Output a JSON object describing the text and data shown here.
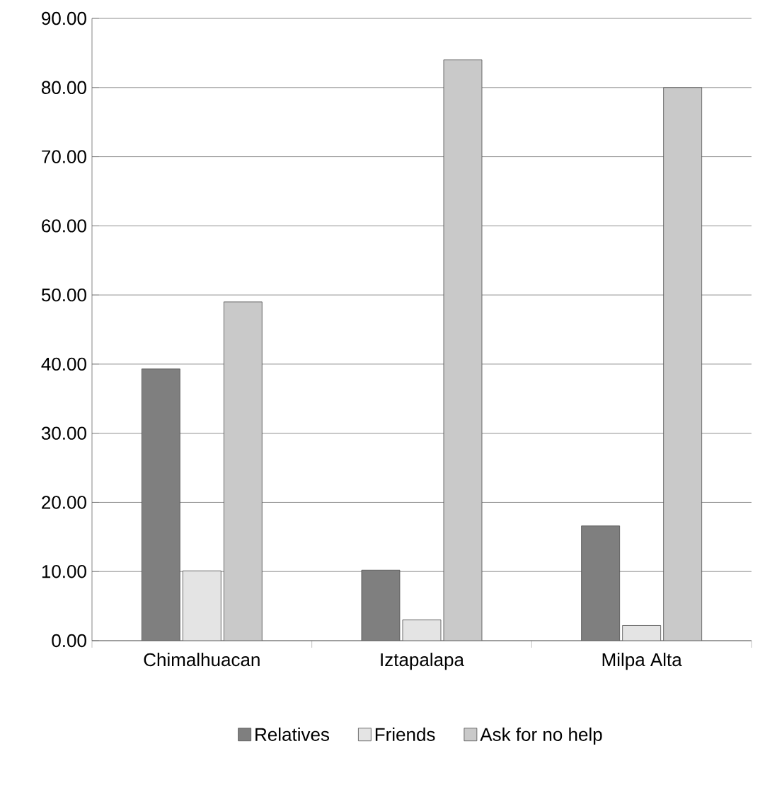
{
  "chart_data": {
    "type": "bar",
    "categories": [
      "Chimalhuacan",
      "Iztapalapa",
      "Milpa Alta"
    ],
    "series": [
      {
        "name": "Relatives",
        "color": "#7f7f7f",
        "values": [
          39.3,
          10.2,
          16.6
        ]
      },
      {
        "name": "Friends",
        "color": "#e4e4e4",
        "values": [
          10.1,
          3.0,
          2.2
        ]
      },
      {
        "name": "Ask for no help",
        "color": "#c9c9c9",
        "values": [
          49.0,
          84.0,
          80.0
        ]
      }
    ],
    "ylim": [
      0,
      90
    ],
    "yticks": [
      {
        "value": 0,
        "label": "0.00"
      },
      {
        "value": 10,
        "label": "10.00"
      },
      {
        "value": 20,
        "label": "20.00"
      },
      {
        "value": 30,
        "label": "30.00"
      },
      {
        "value": 40,
        "label": "40.00"
      },
      {
        "value": 50,
        "label": "50.00"
      },
      {
        "value": 60,
        "label": "60.00"
      },
      {
        "value": 70,
        "label": "70.00"
      },
      {
        "value": 80,
        "label": "80.00"
      },
      {
        "value": 90,
        "label": "90.00"
      }
    ],
    "grid": "y",
    "legend": "bottom"
  }
}
